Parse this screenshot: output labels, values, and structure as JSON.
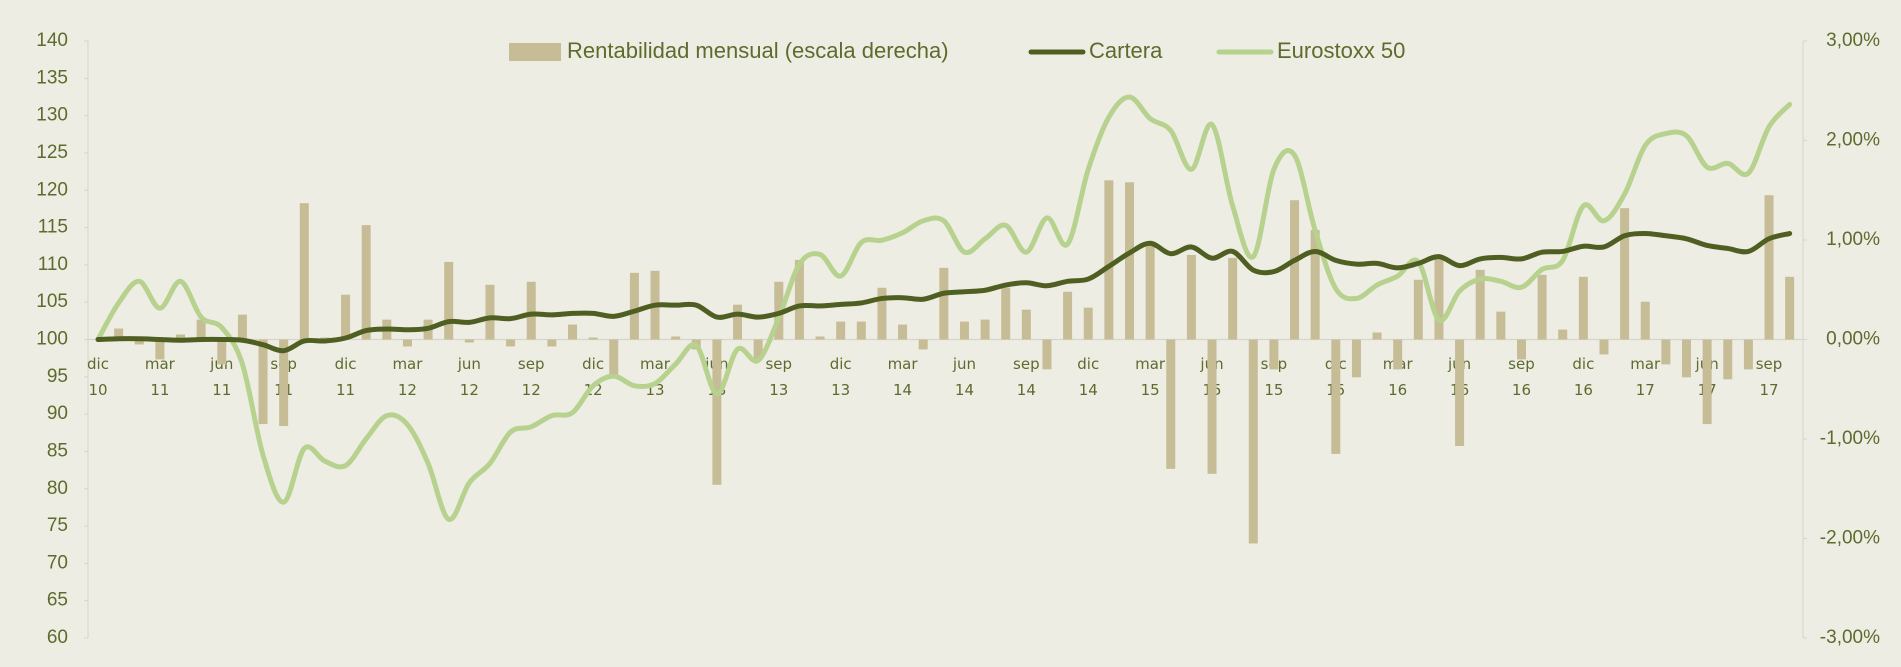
{
  "chart_data": {
    "type": "combo",
    "categories": [
      "dic 10",
      null,
      null,
      "mar 11",
      null,
      null,
      "jun 11",
      null,
      null,
      "sep 11",
      null,
      null,
      "dic 11",
      null,
      null,
      "mar 12",
      null,
      null,
      "jun 12",
      null,
      null,
      "sep 12",
      null,
      null,
      "dic 12",
      null,
      null,
      "mar 13",
      null,
      null,
      "jun 13",
      null,
      null,
      "sep 13",
      null,
      null,
      "dic 13",
      null,
      null,
      "mar 14",
      null,
      null,
      "jun 14",
      null,
      null,
      "sep 14",
      null,
      null,
      "dic 14",
      null,
      null,
      "mar 15",
      null,
      null,
      "jun 15",
      null,
      null,
      "sep 15",
      null,
      null,
      "dic 15",
      null,
      null,
      "mar 16",
      null,
      null,
      "jun 16",
      null,
      null,
      "sep 16",
      null,
      null,
      "dic 16",
      null,
      null,
      "mar 17",
      null,
      null,
      "jun 17",
      null,
      null,
      "sep 17",
      null
    ],
    "series": [
      {
        "name": "Rentabilidad mensual (escala derecha)",
        "type": "bar",
        "axis": "y2",
        "color": "#c6bc96",
        "values": [
          null,
          0.11,
          -0.05,
          -0.2,
          0.05,
          0.2,
          -0.25,
          0.25,
          -0.85,
          -0.87,
          1.37,
          0.02,
          0.45,
          1.15,
          0.2,
          -0.07,
          0.2,
          0.78,
          -0.03,
          0.55,
          -0.07,
          0.58,
          -0.07,
          0.15,
          0.02,
          -0.35,
          0.67,
          0.69,
          0.03,
          -0.1,
          -1.46,
          0.35,
          -0.2,
          0.58,
          0.8,
          0.03,
          0.18,
          0.18,
          0.52,
          0.15,
          -0.1,
          0.72,
          0.18,
          0.2,
          0.52,
          0.3,
          -0.3,
          0.48,
          0.32,
          1.6,
          1.58,
          0.95,
          -1.3,
          0.85,
          -1.35,
          0.82,
          -2.05,
          -0.3,
          1.4,
          1.1,
          -1.15,
          -0.38,
          0.07,
          -0.3,
          0.6,
          0.85,
          -1.07,
          0.7,
          0.28,
          -0.2,
          0.65,
          0.1,
          0.63,
          -0.15,
          1.32,
          0.38,
          -0.25,
          -0.38,
          -0.85,
          -0.4,
          -0.3,
          1.45,
          0.63
        ]
      },
      {
        "name": "Cartera",
        "type": "line",
        "color": "#4f5f22",
        "values": [
          100,
          100.1,
          100.1,
          100,
          99.9,
          100,
          100,
          99.9,
          99.3,
          98.5,
          99.8,
          99.8,
          100.2,
          101.2,
          101.4,
          101.3,
          101.5,
          102.4,
          102.3,
          102.9,
          102.8,
          103.4,
          103.3,
          103.5,
          103.5,
          103.1,
          103.8,
          104.6,
          104.6,
          104.6,
          103,
          103.4,
          103,
          103.5,
          104.5,
          104.5,
          104.7,
          104.9,
          105.5,
          105.6,
          105.4,
          106.2,
          106.4,
          106.6,
          107.3,
          107.6,
          107.2,
          107.8,
          108.1,
          109.8,
          111.6,
          112.9,
          111.5,
          112.4,
          110.9,
          111.8,
          109.3,
          109.1,
          110.6,
          111.8,
          110.6,
          110.1,
          110.2,
          109.6,
          110.2,
          111.1,
          109.9,
          110.8,
          111,
          110.8,
          111.7,
          111.8,
          112.5,
          112.4,
          113.9,
          114.2,
          113.9,
          113.5,
          112.6,
          112.2,
          111.8,
          113.5,
          114.2
        ]
      },
      {
        "name": "Eurostoxx 50",
        "type": "line",
        "color": "#b7d28e",
        "values": [
          100,
          104.9,
          107.8,
          104.2,
          107.8,
          103,
          101.6,
          96.7,
          84.5,
          78.2,
          85.4,
          83.7,
          83.1,
          86.7,
          89.8,
          88.6,
          83.4,
          75.9,
          80.8,
          83.4,
          87.6,
          88.3,
          89.8,
          90.2,
          93.8,
          95.1,
          93.8,
          94.1,
          96.7,
          99.2,
          92.7,
          98.7,
          97.2,
          102.9,
          110.1,
          111.4,
          108.5,
          113,
          113.3,
          114.3,
          115.9,
          115.9,
          111.7,
          113.5,
          115.3,
          111.7,
          116.3,
          112.8,
          122.8,
          129.8,
          132.5,
          129.6,
          128,
          122.8,
          128.8,
          117.9,
          111.1,
          122.8,
          124.7,
          114.6,
          106.8,
          105.5,
          107.3,
          108.5,
          110.4,
          102.6,
          106.5,
          108.1,
          107.8,
          107,
          109.4,
          110.6,
          117.9,
          115.9,
          119.5,
          126,
          127.6,
          127.3,
          123.1,
          123.6,
          122.3,
          128.5,
          131.5
        ]
      }
    ],
    "ylim": [
      60,
      140
    ],
    "yticks": [
      60,
      65,
      70,
      75,
      80,
      85,
      90,
      95,
      100,
      105,
      110,
      115,
      120,
      125,
      130,
      135,
      140
    ],
    "y2lim": [
      -3,
      3
    ],
    "y2ticks": [
      {
        "value": -3,
        "label": "-3,00%"
      },
      {
        "value": -2,
        "label": "-2,00%"
      },
      {
        "value": -1,
        "label": "-1,00%"
      },
      {
        "value": 0,
        "label": "0,00%"
      },
      {
        "value": 1,
        "label": "1,00%"
      },
      {
        "value": 2,
        "label": "2,00%"
      },
      {
        "value": 3,
        "label": "3,00%"
      }
    ],
    "grid": false,
    "legend": "top"
  }
}
